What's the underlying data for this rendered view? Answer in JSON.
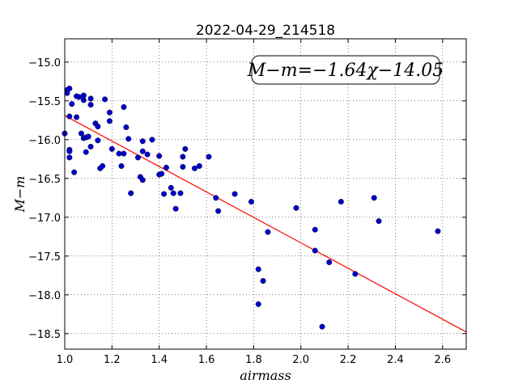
{
  "chart_data": {
    "type": "scatter",
    "title": "2022-04-29_214518",
    "xlabel": "airmass",
    "ylabel": "M−m",
    "xlim": [
      1.0,
      2.7
    ],
    "ylim": [
      -18.7,
      -14.7
    ],
    "y_inverted": true,
    "grid": true,
    "grid_style": "dotted",
    "x_ticks": [
      "1.0",
      "1.2",
      "1.4",
      "1.6",
      "1.8",
      "2.0",
      "2.2",
      "2.4",
      "2.6"
    ],
    "y_ticks": [
      "−15.0",
      "−15.5",
      "−16.0",
      "−16.5",
      "−17.0",
      "−17.5",
      "−18.0",
      "−18.5"
    ],
    "annotation": "M−m=−1.64χ−14.05",
    "fit": {
      "slope": -1.64,
      "intercept": -14.05,
      "color": "#ff0000"
    },
    "point_color": "#0000cc",
    "points": [
      [
        1.0,
        -15.92
      ],
      [
        1.01,
        -15.36
      ],
      [
        1.01,
        -15.4
      ],
      [
        1.02,
        -15.34
      ],
      [
        1.02,
        -15.7
      ],
      [
        1.02,
        -16.23
      ],
      [
        1.02,
        -16.13
      ],
      [
        1.02,
        -16.15
      ],
      [
        1.03,
        -15.54
      ],
      [
        1.04,
        -16.42
      ],
      [
        1.05,
        -15.44
      ],
      [
        1.05,
        -15.71
      ],
      [
        1.06,
        -15.45
      ],
      [
        1.07,
        -15.92
      ],
      [
        1.08,
        -15.49
      ],
      [
        1.08,
        -15.98
      ],
      [
        1.08,
        -15.43
      ],
      [
        1.09,
        -16.16
      ],
      [
        1.09,
        -15.97
      ],
      [
        1.1,
        -15.96
      ],
      [
        1.11,
        -15.47
      ],
      [
        1.11,
        -16.09
      ],
      [
        1.11,
        -15.55
      ],
      [
        1.13,
        -15.79
      ],
      [
        1.14,
        -15.83
      ],
      [
        1.14,
        -16.01
      ],
      [
        1.15,
        -16.37
      ],
      [
        1.16,
        -16.34
      ],
      [
        1.17,
        -15.48
      ],
      [
        1.19,
        -15.65
      ],
      [
        1.19,
        -15.76
      ],
      [
        1.2,
        -16.12
      ],
      [
        1.23,
        -16.18
      ],
      [
        1.24,
        -16.34
      ],
      [
        1.25,
        -16.18
      ],
      [
        1.25,
        -15.58
      ],
      [
        1.26,
        -15.84
      ],
      [
        1.27,
        -15.99
      ],
      [
        1.28,
        -16.69
      ],
      [
        1.31,
        -16.23
      ],
      [
        1.32,
        -16.48
      ],
      [
        1.33,
        -16.15
      ],
      [
        1.33,
        -16.02
      ],
      [
        1.33,
        -16.52
      ],
      [
        1.35,
        -16.19
      ],
      [
        1.37,
        -16.0
      ],
      [
        1.4,
        -16.45
      ],
      [
        1.4,
        -16.21
      ],
      [
        1.41,
        -16.44
      ],
      [
        1.42,
        -16.7
      ],
      [
        1.43,
        -16.36
      ],
      [
        1.45,
        -16.62
      ],
      [
        1.46,
        -16.69
      ],
      [
        1.47,
        -16.89
      ],
      [
        1.49,
        -16.69
      ],
      [
        1.5,
        -16.35
      ],
      [
        1.5,
        -16.22
      ],
      [
        1.51,
        -16.12
      ],
      [
        1.55,
        -16.37
      ],
      [
        1.57,
        -16.34
      ],
      [
        1.61,
        -16.22
      ],
      [
        1.64,
        -16.75
      ],
      [
        1.65,
        -16.92
      ],
      [
        1.72,
        -16.7
      ],
      [
        1.79,
        -16.8
      ],
      [
        1.82,
        -17.67
      ],
      [
        1.82,
        -18.12
      ],
      [
        1.84,
        -17.82
      ],
      [
        1.86,
        -17.19
      ],
      [
        1.98,
        -16.88
      ],
      [
        2.06,
        -17.16
      ],
      [
        2.06,
        -17.43
      ],
      [
        2.09,
        -18.41
      ],
      [
        2.12,
        -17.58
      ],
      [
        2.17,
        -16.8
      ],
      [
        2.23,
        -17.73
      ],
      [
        2.31,
        -16.75
      ],
      [
        2.33,
        -17.05
      ],
      [
        2.58,
        -17.18
      ]
    ]
  }
}
